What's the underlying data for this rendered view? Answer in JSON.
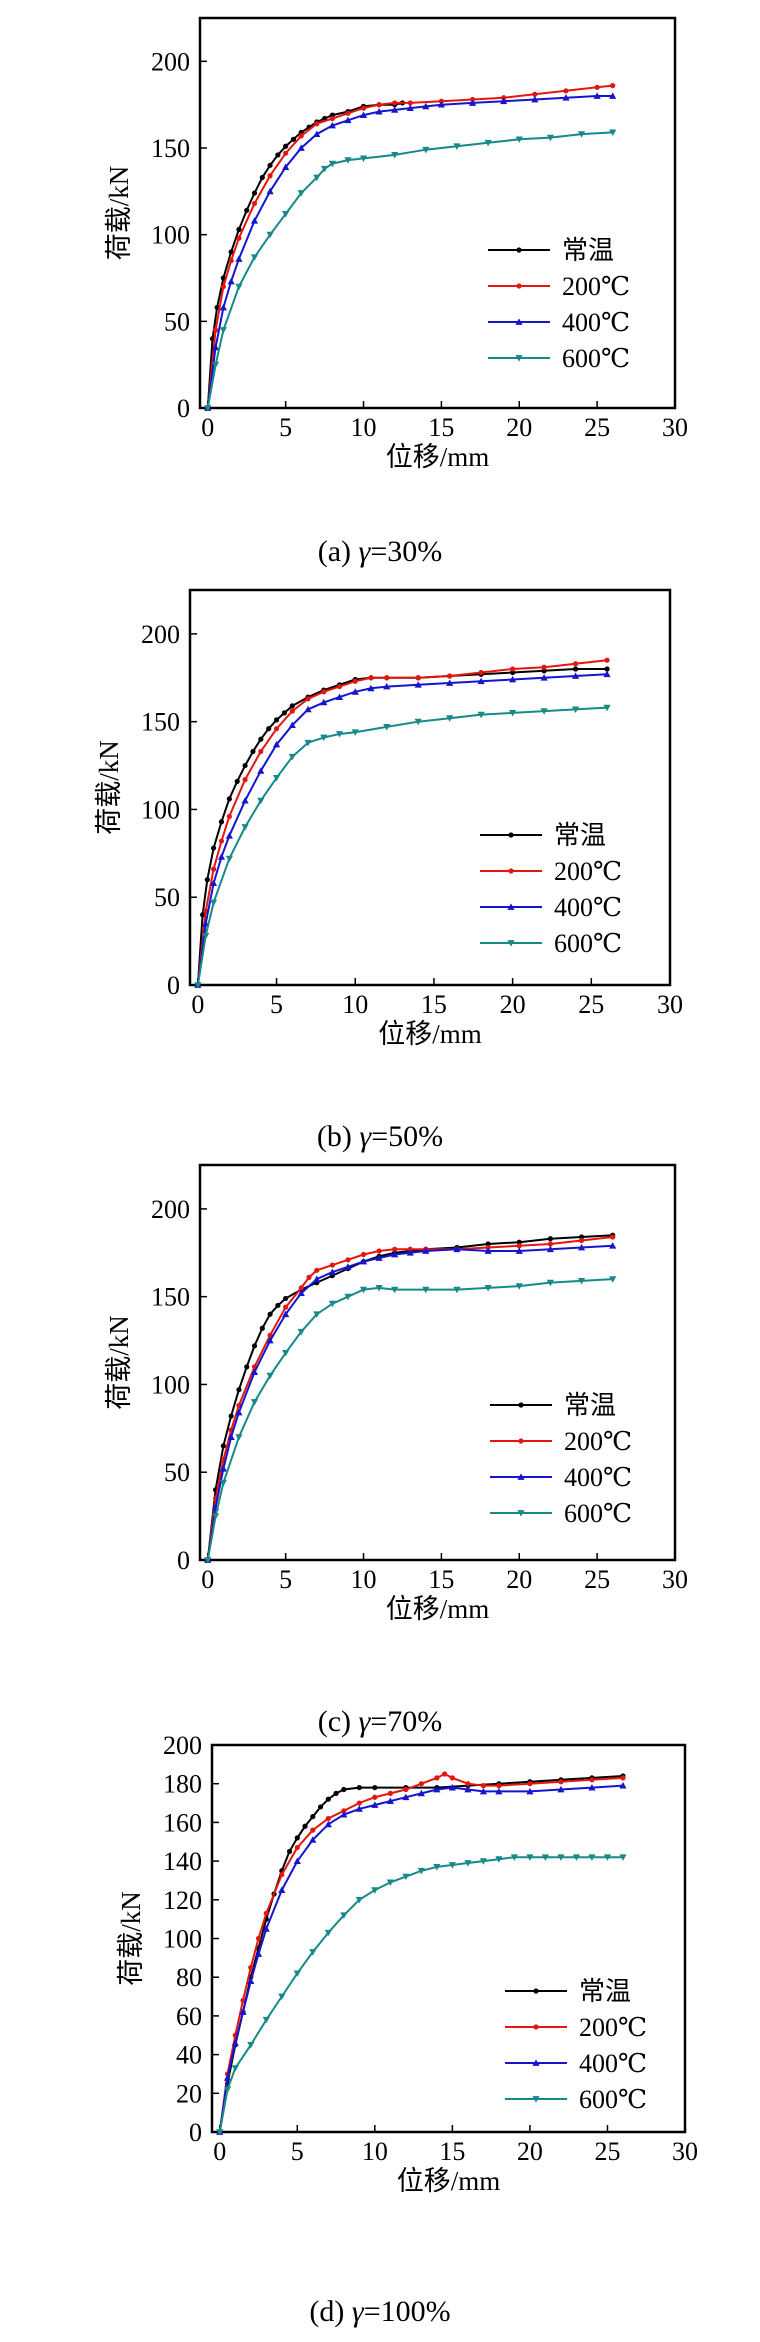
{
  "chart_data": [
    {
      "type": "line",
      "xlabel": "位移/mm",
      "ylabel": "荷载/kN",
      "xlim": [
        -0.5,
        30
      ],
      "ylim": [
        0,
        225
      ],
      "xticks": [
        0,
        5,
        10,
        15,
        20,
        25,
        30
      ],
      "yticks": [
        0,
        50,
        100,
        150,
        200
      ],
      "legend_position": "bottom-right",
      "caption": {
        "prefix": "(a) ",
        "symbol": "γ",
        "value": "=30%"
      },
      "series": [
        {
          "name": "常温",
          "color": "#000000",
          "marker": "circle",
          "x": [
            0,
            0.3,
            0.6,
            1,
            1.5,
            2,
            2.5,
            3,
            3.5,
            4,
            4.5,
            5,
            5.5,
            6,
            6.5,
            7,
            7.5,
            8,
            9,
            10,
            11,
            12,
            12.5
          ],
          "y": [
            0,
            40,
            58,
            75,
            90,
            103,
            114,
            124,
            133,
            140,
            146,
            151,
            155,
            159,
            162,
            165,
            167,
            169,
            171,
            174,
            175,
            175,
            176
          ]
        },
        {
          "name": "200℃",
          "color": "#e4160f",
          "marker": "circle",
          "x": [
            0,
            0.5,
            1,
            1.5,
            2,
            3,
            4,
            5,
            6,
            7,
            8,
            9,
            10,
            11,
            12,
            13,
            15,
            17,
            19,
            21,
            23,
            25,
            26
          ],
          "y": [
            0,
            45,
            70,
            85,
            98,
            118,
            134,
            147,
            157,
            164,
            167,
            170,
            173,
            175,
            176,
            176,
            177,
            178,
            179,
            181,
            183,
            185,
            186
          ]
        },
        {
          "name": "400℃",
          "color": "#1515d0",
          "marker": "triangle",
          "x": [
            0,
            0.5,
            1,
            1.5,
            2,
            3,
            4,
            5,
            6,
            7,
            8,
            9,
            10,
            11,
            12,
            13,
            14,
            15,
            17,
            19,
            21,
            23,
            25,
            26
          ],
          "y": [
            0,
            35,
            58,
            73,
            86,
            108,
            125,
            139,
            150,
            158,
            163,
            166,
            169,
            171,
            172,
            173,
            174,
            175,
            176,
            177,
            178,
            179,
            180,
            180
          ]
        },
        {
          "name": "600℃",
          "color": "#168a88",
          "marker": "triangle-down",
          "x": [
            0,
            0.5,
            1,
            2,
            3,
            4,
            5,
            6,
            7,
            7.5,
            8,
            9,
            10,
            12,
            14,
            16,
            18,
            20,
            22,
            24,
            26
          ],
          "y": [
            0,
            25,
            45,
            70,
            87,
            100,
            112,
            124,
            133,
            138,
            141,
            143,
            144,
            146,
            149,
            151,
            153,
            155,
            156,
            158,
            159
          ]
        }
      ]
    },
    {
      "type": "line",
      "xlabel": "位移/mm",
      "ylabel": "荷载/kN",
      "xlim": [
        -0.5,
        30
      ],
      "ylim": [
        0,
        225
      ],
      "xticks": [
        0,
        5,
        10,
        15,
        20,
        25,
        30
      ],
      "yticks": [
        0,
        50,
        100,
        150,
        200
      ],
      "legend_position": "bottom-right",
      "caption": {
        "prefix": "(b) ",
        "symbol": "γ",
        "value": "=50%"
      },
      "series": [
        {
          "name": "常温",
          "color": "#000000",
          "marker": "circle",
          "x": [
            0,
            0.3,
            0.6,
            1,
            1.5,
            2,
            2.5,
            3,
            3.5,
            4,
            4.5,
            5,
            5.5,
            6,
            7,
            8,
            9,
            10,
            11,
            12,
            14,
            16,
            18,
            20,
            22,
            24,
            26
          ],
          "y": [
            0,
            40,
            60,
            78,
            93,
            106,
            116,
            125,
            133,
            140,
            146,
            151,
            155,
            159,
            164,
            168,
            171,
            174,
            175,
            175,
            175,
            176,
            177,
            178,
            179,
            180,
            180
          ]
        },
        {
          "name": "200℃",
          "color": "#e4160f",
          "marker": "circle",
          "x": [
            0,
            0.5,
            1,
            1.5,
            2,
            3,
            4,
            5,
            6,
            7,
            8,
            9,
            10,
            11,
            12,
            14,
            16,
            18,
            20,
            22,
            24,
            26
          ],
          "y": [
            0,
            42,
            66,
            82,
            96,
            117,
            133,
            146,
            156,
            163,
            167,
            170,
            173,
            175,
            175,
            175,
            176,
            178,
            180,
            181,
            183,
            185
          ]
        },
        {
          "name": "400℃",
          "color": "#1515d0",
          "marker": "triangle",
          "x": [
            0,
            0.5,
            1,
            1.5,
            2,
            3,
            4,
            5,
            6,
            7,
            8,
            9,
            10,
            11,
            12,
            14,
            16,
            18,
            20,
            22,
            24,
            26
          ],
          "y": [
            0,
            35,
            58,
            73,
            85,
            105,
            122,
            137,
            148,
            157,
            161,
            164,
            167,
            169,
            170,
            171,
            172,
            173,
            174,
            175,
            176,
            177
          ]
        },
        {
          "name": "600℃",
          "color": "#168a88",
          "marker": "triangle-down",
          "x": [
            0,
            0.5,
            1,
            2,
            3,
            4,
            5,
            6,
            7,
            8,
            9,
            10,
            12,
            14,
            16,
            18,
            20,
            22,
            24,
            26
          ],
          "y": [
            0,
            28,
            47,
            72,
            90,
            105,
            118,
            130,
            138,
            141,
            143,
            144,
            147,
            150,
            152,
            154,
            155,
            156,
            157,
            158
          ]
        }
      ]
    },
    {
      "type": "line",
      "xlabel": "位移/mm",
      "ylabel": "荷载/kN",
      "xlim": [
        -0.5,
        30
      ],
      "ylim": [
        0,
        225
      ],
      "xticks": [
        0,
        5,
        10,
        15,
        20,
        25,
        30
      ],
      "yticks": [
        0,
        50,
        100,
        150,
        200
      ],
      "legend_position": "bottom-right",
      "caption": {
        "prefix": "(c) ",
        "symbol": "γ",
        "value": "=70%"
      },
      "series": [
        {
          "name": "常温",
          "color": "#000000",
          "marker": "circle",
          "x": [
            0,
            0.5,
            1,
            1.5,
            2,
            2.5,
            3,
            3.5,
            4,
            4.5,
            5,
            6,
            7,
            8,
            9,
            10,
            11,
            12,
            14,
            16,
            18,
            20,
            22,
            24,
            26
          ],
          "y": [
            0,
            40,
            65,
            82,
            97,
            110,
            122,
            132,
            140,
            145,
            149,
            154,
            158,
            162,
            166,
            170,
            173,
            175,
            177,
            178,
            180,
            181,
            183,
            184,
            185
          ]
        },
        {
          "name": "200℃",
          "color": "#e4160f",
          "marker": "circle",
          "x": [
            0,
            0.5,
            1,
            1.5,
            2,
            3,
            4,
            5,
            6,
            6.5,
            7,
            8,
            9,
            10,
            11,
            12,
            13,
            14,
            16,
            18,
            20,
            22,
            24,
            26
          ],
          "y": [
            0,
            35,
            57,
            74,
            88,
            110,
            128,
            144,
            155,
            161,
            165,
            168,
            171,
            174,
            176,
            177,
            177,
            177,
            177,
            178,
            179,
            180,
            182,
            184
          ]
        },
        {
          "name": "400℃",
          "color": "#1515d0",
          "marker": "triangle",
          "x": [
            0,
            0.5,
            1,
            1.5,
            2,
            3,
            4,
            5,
            6,
            7,
            8,
            9,
            10,
            11,
            12,
            13,
            14,
            16,
            18,
            20,
            22,
            24,
            26
          ],
          "y": [
            0,
            30,
            52,
            70,
            84,
            107,
            125,
            140,
            152,
            160,
            164,
            167,
            170,
            172,
            174,
            175,
            176,
            177,
            176,
            176,
            177,
            178,
            179
          ]
        },
        {
          "name": "600℃",
          "color": "#168a88",
          "marker": "triangle-down",
          "x": [
            0,
            0.5,
            1,
            2,
            3,
            4,
            5,
            6,
            7,
            8,
            9,
            10,
            11,
            12,
            14,
            16,
            18,
            20,
            22,
            24,
            26
          ],
          "y": [
            0,
            25,
            44,
            70,
            90,
            105,
            118,
            130,
            140,
            146,
            150,
            154,
            155,
            154,
            154,
            154,
            155,
            156,
            158,
            159,
            160
          ]
        }
      ]
    },
    {
      "type": "line",
      "xlabel": "位移/mm",
      "ylabel": "荷载/kN",
      "xlim": [
        -0.5,
        30
      ],
      "ylim": [
        0,
        200
      ],
      "xticks": [
        0,
        5,
        10,
        15,
        20,
        25,
        30
      ],
      "yticks": [
        0,
        20,
        40,
        60,
        80,
        100,
        120,
        140,
        160,
        180,
        200
      ],
      "legend_position": "bottom-right",
      "caption": {
        "prefix": "(d) ",
        "symbol": "γ",
        "value": "=100%"
      },
      "series": [
        {
          "name": "常温",
          "color": "#000000",
          "marker": "circle",
          "x": [
            0,
            0.5,
            1,
            1.5,
            2,
            2.5,
            3,
            3.5,
            4,
            4.5,
            5,
            5.5,
            6,
            6.5,
            7,
            7.5,
            8,
            9,
            10,
            12,
            14,
            16,
            18,
            20,
            22,
            24,
            26
          ],
          "y": [
            0,
            25,
            45,
            62,
            80,
            95,
            110,
            123,
            135,
            145,
            152,
            158,
            163,
            168,
            172,
            175,
            177,
            178,
            178,
            178,
            178,
            179,
            180,
            181,
            182,
            183,
            184
          ]
        },
        {
          "name": "200℃",
          "color": "#e4160f",
          "marker": "circle",
          "x": [
            0,
            0.5,
            1,
            1.5,
            2,
            2.5,
            3,
            4,
            5,
            6,
            7,
            8,
            9,
            10,
            11,
            12,
            13,
            14,
            14.5,
            15,
            16,
            17,
            18,
            20,
            22,
            24,
            26
          ],
          "y": [
            0,
            30,
            50,
            68,
            85,
            100,
            113,
            133,
            147,
            156,
            162,
            166,
            170,
            173,
            175,
            177,
            180,
            183,
            185,
            183,
            180,
            179,
            179,
            180,
            181,
            182,
            183
          ]
        },
        {
          "name": "400℃",
          "color": "#1515d0",
          "marker": "triangle",
          "x": [
            0,
            0.5,
            1,
            1.5,
            2,
            2.5,
            3,
            4,
            5,
            6,
            7,
            8,
            9,
            10,
            11,
            12,
            13,
            14,
            15,
            16,
            17,
            18,
            20,
            22,
            24,
            26
          ],
          "y": [
            0,
            28,
            46,
            62,
            78,
            92,
            105,
            125,
            140,
            151,
            159,
            164,
            167,
            169,
            171,
            173,
            175,
            177,
            178,
            177,
            176,
            176,
            176,
            177,
            178,
            179
          ]
        },
        {
          "name": "600℃",
          "color": "#168a88",
          "marker": "triangle-down",
          "x": [
            0,
            0.5,
            1,
            2,
            3,
            4,
            5,
            6,
            7,
            8,
            9,
            10,
            11,
            12,
            13,
            14,
            15,
            16,
            17,
            18,
            19,
            20,
            21,
            22,
            23,
            24,
            25,
            26
          ],
          "y": [
            0,
            22,
            33,
            45,
            58,
            70,
            82,
            93,
            103,
            112,
            120,
            125,
            129,
            132,
            135,
            137,
            138,
            139,
            140,
            141,
            142,
            142,
            142,
            142,
            142,
            142,
            142,
            142
          ]
        }
      ]
    }
  ]
}
